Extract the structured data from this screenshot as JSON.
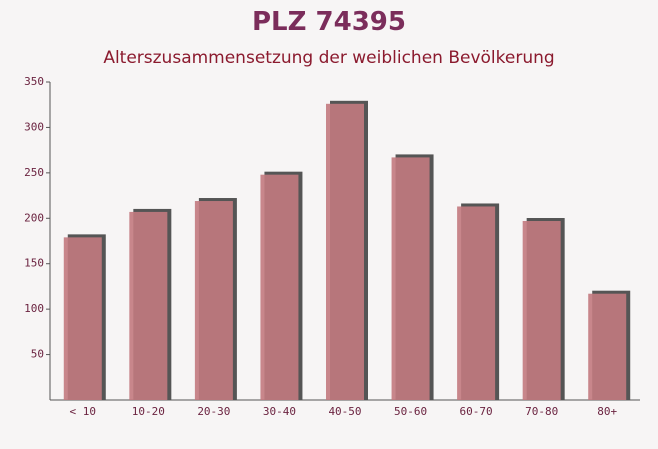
{
  "chart_data": {
    "type": "bar",
    "title": "PLZ 74395",
    "subtitle": "Alterszusammensetzung der weiblichen Bevölkerung",
    "categories": [
      "< 10",
      "10-20",
      "20-30",
      "30-40",
      "40-50",
      "50-60",
      "60-70",
      "70-80",
      "80+"
    ],
    "values": [
      179,
      207,
      219,
      248,
      326,
      267,
      213,
      197,
      117
    ],
    "color": "#c27a80",
    "ylim": [
      0,
      350
    ],
    "yticks": [
      50,
      100,
      150,
      200,
      250,
      300,
      350
    ]
  }
}
